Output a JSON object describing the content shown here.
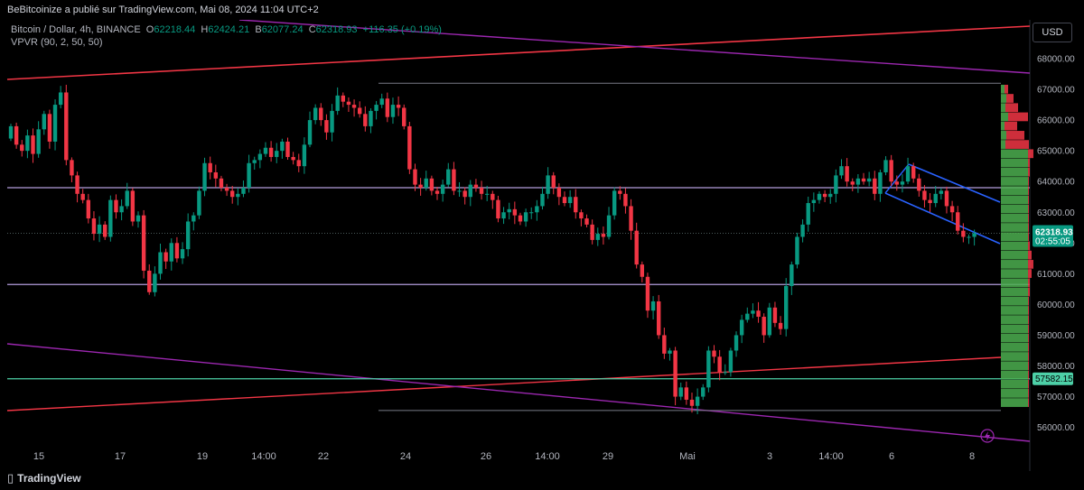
{
  "header": {
    "published_by": "BeBitcoinize a publié sur TradingView.com, Mai 08, 2024 11:04 UTC+2"
  },
  "legend": {
    "symbol": "Bitcoin / Dollar, 4h, BINANCE",
    "open_label": "O",
    "open": "62218.44",
    "high_label": "H",
    "high": "62424.21",
    "low_label": "B",
    "low": "62077.24",
    "close_label": "C",
    "close": "62318.93",
    "change": "+116.35 (+0.19%)",
    "indicator": "VPVR (90, 2, 50, 50)"
  },
  "currency_button": "USD",
  "watermark": "TradingView",
  "colors": {
    "up": "#089981",
    "down": "#f23645",
    "purple": "#9c27b0",
    "red_line": "#f23645",
    "teal_line": "#4dd0a7",
    "hline": "#b39ddb",
    "grey_line": "#787b86",
    "vp_up": "#4caf50",
    "vp_down": "#f23645",
    "channel": "#2962ff"
  },
  "chart_data": {
    "type": "candlestick",
    "symbol": "Bitcoin / Dollar",
    "timeframe": "4h",
    "exchange": "BINANCE",
    "ylim": [
      55300,
      69700
    ],
    "y_ticks": [
      "68000.00",
      "67000.00",
      "66000.00",
      "65000.00",
      "64000.00",
      "63000.00",
      "62000.00",
      "61000.00",
      "60000.00",
      "59000.00",
      "58000.00",
      "57000.00",
      "56000.00"
    ],
    "x_ticks": [
      {
        "label": "15",
        "x": 43
      },
      {
        "label": "17",
        "x": 133
      },
      {
        "label": "19",
        "x": 224
      },
      {
        "label": "14:00",
        "x": 292
      },
      {
        "label": "22",
        "x": 358
      },
      {
        "label": "24",
        "x": 449
      },
      {
        "label": "26",
        "x": 538
      },
      {
        "label": "14:00",
        "x": 606
      },
      {
        "label": "29",
        "x": 673
      },
      {
        "label": "Mai",
        "x": 761
      },
      {
        "label": "3",
        "x": 852
      },
      {
        "label": "14:00",
        "x": 920
      },
      {
        "label": "6",
        "x": 987
      },
      {
        "label": "8",
        "x": 1076
      }
    ],
    "current_price": "62318.93",
    "countdown": "02:55:05",
    "marked_price": "57582.15",
    "horizontal_levels": [
      63800,
      60650,
      57582.15
    ],
    "range_top": 67200,
    "range_bottom": 56550,
    "closes": [
      65800,
      65200,
      65000,
      65500,
      64900,
      65700,
      66200,
      65300,
      66500,
      66900,
      64700,
      64200,
      63600,
      63400,
      62800,
      62300,
      62600,
      62200,
      63400,
      63000,
      63200,
      63700,
      62700,
      62900,
      61100,
      60400,
      61000,
      61700,
      61400,
      62000,
      61500,
      61800,
      62700,
      62900,
      63700,
      64600,
      64300,
      64100,
      63800,
      63700,
      63500,
      63600,
      63800,
      64600,
      64700,
      64900,
      65100,
      64800,
      65000,
      65300,
      64800,
      64700,
      64500,
      65200,
      66000,
      66400,
      66000,
      65600,
      66300,
      66800,
      66600,
      66500,
      66400,
      66200,
      65800,
      66300,
      66500,
      66700,
      66100,
      66500,
      66400,
      65800,
      64400,
      63900,
      63800,
      64100,
      63700,
      63600,
      63900,
      64400,
      63700,
      63700,
      63500,
      63900,
      63800,
      63600,
      63600,
      63400,
      62800,
      63000,
      63100,
      62900,
      62700,
      63000,
      63000,
      63200,
      63600,
      64200,
      63800,
      63500,
      63300,
      63500,
      63000,
      62800,
      62600,
      62100,
      62300,
      62200,
      62900,
      63700,
      63600,
      63200,
      62400,
      61300,
      60900,
      59800,
      60100,
      59000,
      58400,
      58500,
      57000,
      57300,
      56900,
      56700,
      57000,
      57300,
      58500,
      58300,
      57800,
      57800,
      58500,
      59000,
      59500,
      59700,
      59800,
      59600,
      59000,
      59900,
      59400,
      59200,
      60600,
      61300,
      62200,
      62600,
      63300,
      63400,
      63600,
      63500,
      63600,
      64200,
      64500,
      64000,
      63900,
      64100,
      64000,
      64100,
      63600,
      64300,
      64700,
      64000,
      63900,
      64000,
      64500,
      64100,
      63700,
      63400,
      63300,
      63600,
      63700,
      63200,
      63000,
      62400,
      62200,
      62200,
      62319
    ]
  }
}
